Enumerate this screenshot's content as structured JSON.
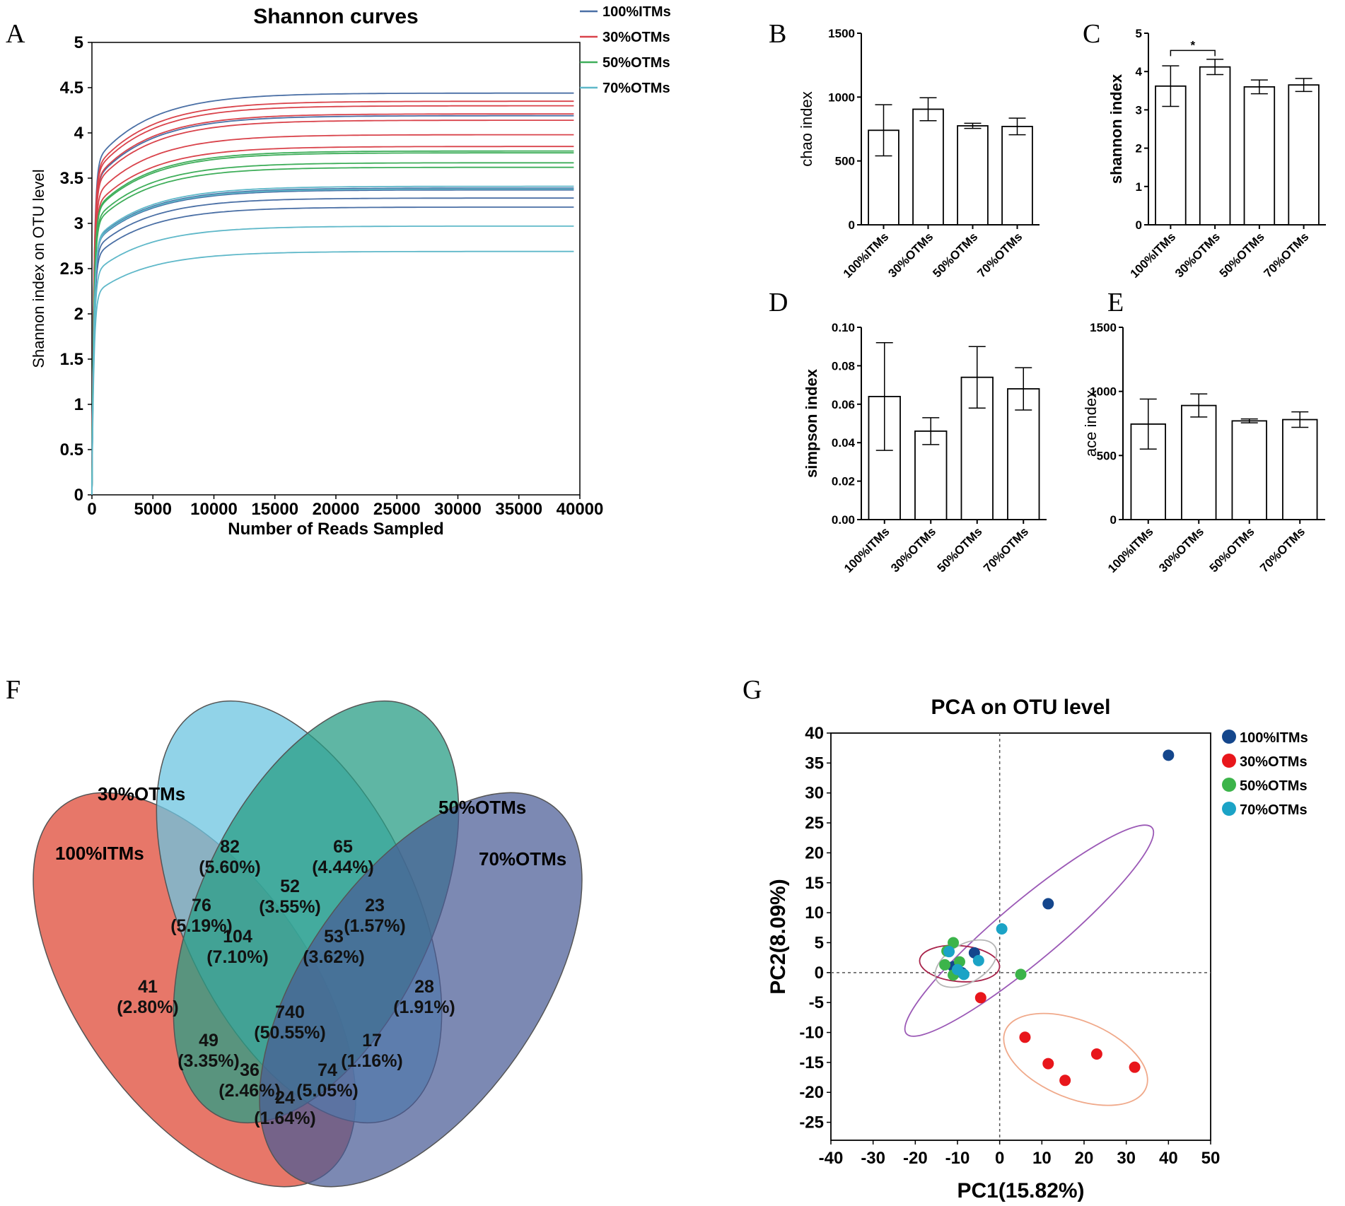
{
  "panel_letters": {
    "a": "A",
    "b": "B",
    "c": "C",
    "d": "D",
    "e": "E",
    "f": "F",
    "g": "G"
  },
  "chart_data": [
    {
      "panel": "A",
      "type": "line",
      "title": "Shannon curves",
      "xlabel": "Number of Reads Sampled",
      "ylabel": "Shannon index on OTU level",
      "xlim": [
        0,
        40000
      ],
      "ylim": [
        0,
        5
      ],
      "xticks": [
        "0",
        "5000",
        "10000",
        "15000",
        "20000",
        "25000",
        "30000",
        "35000",
        "40000"
      ],
      "yticks": [
        "0",
        "0.5",
        "1",
        "1.5",
        "2",
        "2.5",
        "3",
        "3.5",
        "4",
        "4.5",
        "5"
      ],
      "legend": [
        {
          "name": "100%ITMs",
          "color": "#4a6fa5"
        },
        {
          "name": "30%OTMs",
          "color": "#d9434b"
        },
        {
          "name": "50%OTMs",
          "color": "#3fae5a"
        },
        {
          "name": "70%OTMs",
          "color": "#5fb8c9"
        }
      ],
      "series": [
        {
          "group": "100%ITMs",
          "plateaus": [
            4.44,
            4.19,
            3.39,
            3.37,
            3.28,
            3.18
          ]
        },
        {
          "group": "30%OTMs",
          "plateaus": [
            4.35,
            4.3,
            4.21,
            4.14,
            3.98,
            3.85
          ]
        },
        {
          "group": "50%OTMs",
          "plateaus": [
            3.8,
            3.78,
            3.67,
            3.62
          ]
        },
        {
          "group": "70%OTMs",
          "plateaus": [
            3.41,
            3.38,
            2.97,
            2.69
          ]
        }
      ],
      "max_x": 39500
    },
    {
      "panel": "B",
      "type": "bar",
      "ylabel": "chao index",
      "categories": [
        "100%ITMs",
        "30%OTMs",
        "50%OTMs",
        "70%OTMs"
      ],
      "values": [
        740,
        905,
        775,
        770
      ],
      "errors": [
        200,
        90,
        20,
        65
      ],
      "ylim": [
        0,
        1500
      ],
      "yticks": [
        "0",
        "500",
        "1000",
        "1500"
      ]
    },
    {
      "panel": "C",
      "type": "bar",
      "ylabel": "shannon index",
      "categories": [
        "100%ITMs",
        "30%OTMs",
        "50%OTMs",
        "70%OTMs"
      ],
      "values": [
        3.62,
        4.12,
        3.6,
        3.65
      ],
      "errors": [
        0.53,
        0.2,
        0.18,
        0.17
      ],
      "ylim": [
        0,
        5
      ],
      "yticks": [
        "0",
        "1",
        "2",
        "3",
        "4",
        "5"
      ],
      "annotation": "*"
    },
    {
      "panel": "D",
      "type": "bar",
      "ylabel": "simpson index",
      "categories": [
        "100%ITMs",
        "30%OTMs",
        "50%OTMs",
        "70%OTMs"
      ],
      "values": [
        0.064,
        0.046,
        0.074,
        0.068
      ],
      "errors": [
        0.028,
        0.007,
        0.016,
        0.011
      ],
      "ylim": [
        0,
        0.1
      ],
      "yticks": [
        "0.00",
        "0.02",
        "0.04",
        "0.06",
        "0.08",
        "0.10"
      ]
    },
    {
      "panel": "E",
      "type": "bar",
      "ylabel": "ace index",
      "categories": [
        "100%ITMs",
        "30%OTMs",
        "50%OTMs",
        "70%OTMs"
      ],
      "values": [
        745,
        890,
        770,
        780
      ],
      "errors": [
        195,
        90,
        15,
        60
      ],
      "ylim": [
        0,
        1500
      ],
      "yticks": [
        "0",
        "500",
        "1000",
        "1500"
      ]
    },
    {
      "panel": "F",
      "type": "venn",
      "sets": [
        {
          "name": "100%ITMs",
          "color": "#e35f4f"
        },
        {
          "name": "30%OTMs",
          "color": "#6cc4e0"
        },
        {
          "name": "50%OTMs",
          "color": "#2a9e86"
        },
        {
          "name": "70%OTMs",
          "color": "#4a5b95"
        }
      ],
      "regions": [
        {
          "sets": "30%OTMs",
          "count": "82",
          "pct": "(5.60%)"
        },
        {
          "sets": "50%OTMs",
          "count": "65",
          "pct": "(4.44%)"
        },
        {
          "sets": "30%OTMs&50%OTMs",
          "count": "52",
          "pct": "(3.55%)"
        },
        {
          "sets": "100%ITMs&30%OTMs",
          "count": "76",
          "pct": "(5.19%)"
        },
        {
          "sets": "50%OTMs&70%OTMs",
          "count": "23",
          "pct": "(1.57%)"
        },
        {
          "sets": "100%ITMs&30%OTMs&50%OTMs",
          "count": "104",
          "pct": "(7.10%)"
        },
        {
          "sets": "30%OTMs&50%OTMs&70%OTMs",
          "count": "53",
          "pct": "(3.62%)"
        },
        {
          "sets": "100%ITMs",
          "count": "41",
          "pct": "(2.80%)"
        },
        {
          "sets": "70%OTMs",
          "count": "28",
          "pct": "(1.91%)"
        },
        {
          "sets": "all",
          "count": "740",
          "pct": "(50.55%)"
        },
        {
          "sets": "100%ITMs&50%OTMs",
          "count": "49",
          "pct": "(3.35%)"
        },
        {
          "sets": "30%OTMs&70%OTMs",
          "count": "17",
          "pct": "(1.16%)"
        },
        {
          "sets": "100%ITMs&50%OTMs&70%OTMs",
          "count": "36",
          "pct": "(2.46%)"
        },
        {
          "sets": "100%ITMs&30%OTMs&70%OTMs",
          "count": "74",
          "pct": "(5.05%)"
        },
        {
          "sets": "100%ITMs&70%OTMs",
          "count": "24",
          "pct": "(1.64%)"
        }
      ]
    },
    {
      "panel": "G",
      "type": "scatter",
      "title": "PCA on OTU level",
      "xlabel": "PC1(15.82%)",
      "ylabel": "PC2(8.09%)",
      "xlim": [
        -40,
        50
      ],
      "ylim": [
        -28,
        40
      ],
      "xticks": [
        "-40",
        "-30",
        "-20",
        "-10",
        "0",
        "10",
        "20",
        "30",
        "40",
        "50"
      ],
      "yticks": [
        "-25",
        "-20",
        "-15",
        "-10",
        "-5",
        "0",
        "5",
        "10",
        "15",
        "20",
        "25",
        "30",
        "35",
        "40"
      ],
      "series": [
        {
          "name": "100%ITMs",
          "color": "#14468c",
          "points": [
            [
              40,
              36.3
            ],
            [
              11.5,
              11.5
            ],
            [
              -6,
              3.3
            ],
            [
              -11,
              1
            ],
            [
              -9,
              0
            ]
          ]
        },
        {
          "name": "30%OTMs",
          "color": "#e8161b",
          "points": [
            [
              -4.5,
              -4.2
            ],
            [
              6,
              -10.8
            ],
            [
              11.5,
              -15.2
            ],
            [
              15.5,
              -18
            ],
            [
              23,
              -13.6
            ],
            [
              32,
              -15.8
            ]
          ]
        },
        {
          "name": "50%OTMs",
          "color": "#3cb44a",
          "points": [
            [
              -11,
              5
            ],
            [
              -12.5,
              3.6
            ],
            [
              -13,
              1.3
            ],
            [
              -11,
              -0.4
            ],
            [
              -9.5,
              1.8
            ],
            [
              5,
              -0.3
            ]
          ]
        },
        {
          "name": "70%OTMs",
          "color": "#1ba3c6",
          "points": [
            [
              0.5,
              7.3
            ],
            [
              -5,
              2
            ],
            [
              -12,
              3.5
            ],
            [
              -10,
              0.5
            ],
            [
              -8.5,
              -0.3
            ]
          ]
        }
      ],
      "ellipses": [
        {
          "group": "100%ITMs",
          "color": "#9b59b6",
          "cx": 7,
          "cy": 7,
          "rx": 38,
          "ry": 5,
          "angle": 40
        },
        {
          "group": "30%OTMs",
          "color": "#f0a98a",
          "cx": 18,
          "cy": -14.5,
          "rx": 18,
          "ry": 6.5,
          "angle": -22
        },
        {
          "group": "50%OTMs",
          "color": "#a8234a",
          "cx": -9.5,
          "cy": 1.5,
          "rx": 9.5,
          "ry": 3,
          "angle": -5
        },
        {
          "group": "70%OTMs",
          "color": "#b5b5b5",
          "cx": -8,
          "cy": 1.5,
          "rx": 8,
          "ry": 3.2,
          "angle": 30
        }
      ]
    }
  ]
}
